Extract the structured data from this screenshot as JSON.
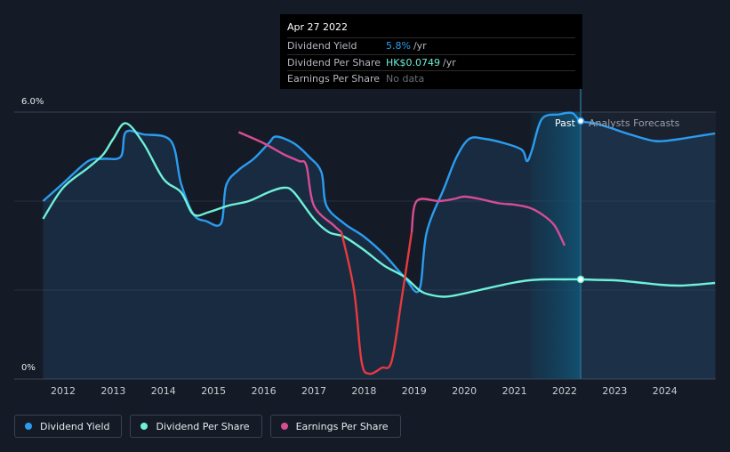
{
  "chart_data": {
    "type": "line",
    "y_axis": {
      "unit": "%",
      "ticks": [
        "6.0%",
        "0%"
      ],
      "ylim": [
        0,
        6.0
      ]
    },
    "x_axis": {
      "range": [
        2011.6,
        2025.0
      ],
      "ticks": [
        "2012",
        "2013",
        "2014",
        "2015",
        "2016",
        "2017",
        "2018",
        "2019",
        "2020",
        "2021",
        "2022",
        "2023",
        "2024"
      ]
    },
    "divider_x": 2022.32,
    "forecast_band_start": 2021.32,
    "region_labels": {
      "past": "Past",
      "forecast": "Analysts Forecasts"
    },
    "series": [
      {
        "name": "Dividend Yield",
        "key": "dividend_yield",
        "color": "#2b9cf0",
        "fill": true,
        "x": [
          2011.6,
          2012.0,
          2012.5,
          2012.8,
          2013.15,
          2013.25,
          2013.6,
          2014.15,
          2014.35,
          2014.6,
          2014.85,
          2015.15,
          2015.25,
          2015.5,
          2015.8,
          2016.1,
          2016.25,
          2016.6,
          2016.9,
          2017.15,
          2017.25,
          2017.6,
          2018.0,
          2018.4,
          2018.8,
          2019.1,
          2019.25,
          2019.6,
          2019.85,
          2020.1,
          2020.4,
          2020.8,
          2021.15,
          2021.25,
          2021.35,
          2021.55,
          2021.9,
          2022.15,
          2022.32,
          2022.6,
          2022.9,
          2023.3,
          2023.8,
          2024.2,
          2024.6,
          2025.0
        ],
        "y": [
          4.0,
          4.4,
          4.9,
          4.95,
          5.0,
          5.55,
          5.5,
          5.35,
          4.4,
          3.7,
          3.55,
          3.5,
          4.35,
          4.7,
          4.95,
          5.3,
          5.45,
          5.3,
          5.0,
          4.65,
          3.9,
          3.5,
          3.2,
          2.8,
          2.3,
          2.0,
          3.3,
          4.3,
          5.0,
          5.4,
          5.4,
          5.3,
          5.15,
          4.9,
          5.15,
          5.85,
          5.95,
          5.98,
          5.8,
          5.75,
          5.65,
          5.5,
          5.35,
          5.38,
          5.45,
          5.52
        ]
      },
      {
        "name": "Dividend Per Share",
        "key": "dividend_per_share",
        "color": "#6ff0d8",
        "fill": false,
        "x": [
          2011.6,
          2012.0,
          2012.5,
          2012.8,
          2013.0,
          2013.25,
          2013.6,
          2014.0,
          2014.35,
          2014.6,
          2014.9,
          2015.3,
          2015.7,
          2016.1,
          2016.4,
          2016.6,
          2017.0,
          2017.3,
          2017.6,
          2018.0,
          2018.4,
          2018.8,
          2019.1,
          2019.3,
          2019.6,
          2019.9,
          2020.3,
          2020.7,
          2021.0,
          2021.3,
          2021.6,
          2022.0,
          2022.32,
          2022.6,
          2023.0,
          2023.4,
          2023.9,
          2024.3,
          2024.6,
          2025.0
        ],
        "y": [
          3.6,
          4.3,
          4.75,
          5.05,
          5.4,
          5.75,
          5.3,
          4.5,
          4.2,
          3.7,
          3.75,
          3.9,
          4.0,
          4.2,
          4.3,
          4.2,
          3.6,
          3.3,
          3.2,
          2.9,
          2.55,
          2.3,
          2.0,
          1.9,
          1.85,
          1.9,
          2.0,
          2.1,
          2.17,
          2.22,
          2.24,
          2.24,
          2.24,
          2.23,
          2.22,
          2.18,
          2.12,
          2.1,
          2.12,
          2.16
        ]
      },
      {
        "name": "Earnings Per Share",
        "key": "earnings_per_share",
        "color": "#d64d93",
        "fill": false,
        "x": [
          2015.5,
          2016.0,
          2016.4,
          2016.7,
          2016.85,
          2017.0,
          2017.4,
          2017.55
        ],
        "y": [
          5.55,
          5.3,
          5.05,
          4.9,
          4.8,
          3.9,
          3.45,
          3.3
        ]
      },
      {
        "name": "Earnings Per Share (negative growth)",
        "key": "earnings_red",
        "color": "#e8393f",
        "fill": false,
        "x": [
          2017.55,
          2017.8,
          2017.95,
          2018.1,
          2018.35,
          2018.55,
          2018.75,
          2018.95
        ],
        "y": [
          3.3,
          2.0,
          0.4,
          0.12,
          0.25,
          0.4,
          1.8,
          3.3
        ]
      },
      {
        "name": "Earnings Per Share (late)",
        "key": "earnings_late",
        "color": "#d64d93",
        "fill": false,
        "x": [
          2018.95,
          2019.05,
          2019.5,
          2019.8,
          2020.0,
          2020.3,
          2020.7,
          2021.0,
          2021.3,
          2021.55,
          2021.8,
          2022.0
        ],
        "y": [
          3.3,
          4.0,
          4.0,
          4.05,
          4.1,
          4.05,
          3.95,
          3.92,
          3.85,
          3.7,
          3.45,
          3.0
        ]
      }
    ],
    "markers": [
      {
        "series": "dividend_yield",
        "x": 2022.32,
        "y": 5.8
      },
      {
        "series": "dividend_per_share",
        "x": 2022.32,
        "y": 2.24
      }
    ]
  },
  "tooltip": {
    "date": "Apr 27 2022",
    "rows": [
      {
        "label": "Dividend Yield",
        "value": "5.8%",
        "unit": "/yr"
      },
      {
        "label": "Dividend Per Share",
        "value": "HK$0.0749",
        "unit": "/yr"
      },
      {
        "label": "Earnings Per Share",
        "value": "No data",
        "unit": ""
      }
    ]
  },
  "legend": [
    {
      "label": "Dividend Yield",
      "color": "#2b9cf0"
    },
    {
      "label": "Dividend Per Share",
      "color": "#6ff0d8"
    },
    {
      "label": "Earnings Per Share",
      "color": "#d64d93"
    }
  ]
}
